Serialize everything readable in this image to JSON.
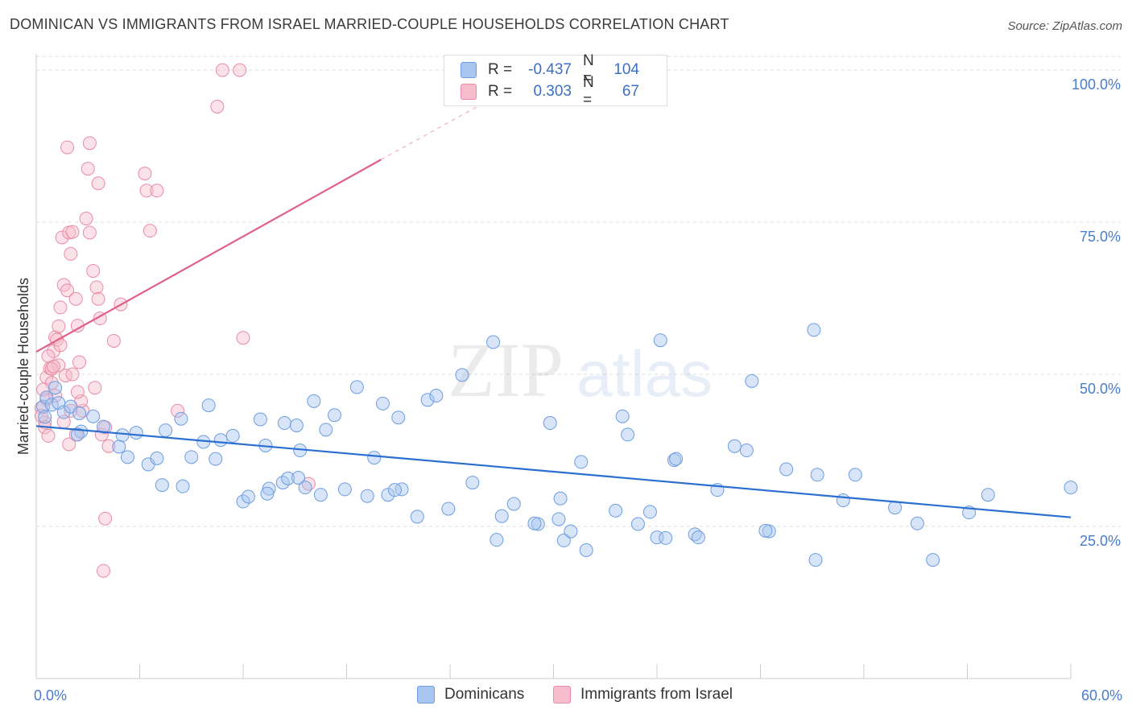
{
  "title": "DOMINICAN VS IMMIGRANTS FROM ISRAEL MARRIED-COUPLE HOUSEHOLDS CORRELATION CHART",
  "source": "Source: ZipAtlas.com",
  "watermark": {
    "zip": "ZIP",
    "atlas": "atlas"
  },
  "legend": {
    "rows": [
      {
        "r_label": "R =",
        "r_value": "-0.437",
        "n_label": "N =",
        "n_value": "104",
        "color": "#a9c6f0",
        "border": "#6d9de0"
      },
      {
        "r_label": "R =",
        "r_value": "0.303",
        "n_label": "N =",
        "n_value": "67",
        "color": "#f7bccd",
        "border": "#e88ca8"
      }
    ]
  },
  "bottom_legend": {
    "dominicans": "Dominicans",
    "israel": "Immigrants from Israel"
  },
  "chart_data": {
    "type": "scatter",
    "title": "DOMINICAN VS IMMIGRANTS FROM ISRAEL MARRIED-COUPLE HOUSEHOLDS CORRELATION CHART",
    "xlabel": "",
    "ylabel": "Married-couple Households",
    "xlim": [
      0,
      60
    ],
    "ylim": [
      0,
      102
    ],
    "x_tick_labels": {
      "left": "0.0%",
      "right": "60.0%"
    },
    "y_tick_labels": [
      "25.0%",
      "50.0%",
      "75.0%",
      "100.0%"
    ],
    "y_ticks": [
      25,
      50,
      75,
      100
    ],
    "colors": {
      "dominicans": "#6d9de0",
      "dominicans_line": "#2b6fd1",
      "israel": "#e88ca8",
      "israel_line": "#e0608a"
    },
    "series": [
      {
        "name": "Dominicans",
        "trend": {
          "x0": 0,
          "y0": 41.5,
          "x1": 60,
          "y1": 26.5
        },
        "points": [
          [
            0.4,
            44.7
          ],
          [
            0.6,
            46.2
          ],
          [
            0.9,
            45.0
          ],
          [
            1.1,
            47.8
          ],
          [
            0.5,
            43.0
          ],
          [
            1.3,
            45.3
          ],
          [
            1.6,
            43.8
          ],
          [
            2.0,
            44.7
          ],
          [
            2.5,
            43.6
          ],
          [
            3.3,
            43.1
          ],
          [
            3.9,
            41.4
          ],
          [
            2.6,
            40.6
          ],
          [
            2.4,
            40.1
          ],
          [
            5.0,
            40.0
          ],
          [
            5.8,
            40.4
          ],
          [
            7.5,
            40.8
          ],
          [
            8.4,
            42.7
          ],
          [
            9.7,
            38.9
          ],
          [
            10.7,
            39.2
          ],
          [
            11.4,
            39.9
          ],
          [
            13.0,
            42.6
          ],
          [
            13.3,
            38.3
          ],
          [
            14.4,
            42.0
          ],
          [
            15.1,
            41.6
          ],
          [
            16.1,
            45.6
          ],
          [
            15.3,
            37.5
          ],
          [
            17.3,
            43.3
          ],
          [
            16.8,
            40.9
          ],
          [
            18.6,
            47.9
          ],
          [
            19.6,
            36.3
          ],
          [
            20.1,
            45.2
          ],
          [
            21.0,
            42.9
          ],
          [
            21.2,
            31.1
          ],
          [
            22.7,
            45.8
          ],
          [
            23.2,
            46.5
          ],
          [
            24.7,
            49.9
          ],
          [
            25.3,
            32.2
          ],
          [
            26.5,
            55.3
          ],
          [
            27.0,
            26.7
          ],
          [
            27.7,
            28.7
          ],
          [
            29.1,
            25.4
          ],
          [
            30.3,
            26.2
          ],
          [
            30.4,
            29.6
          ],
          [
            29.8,
            42.0
          ],
          [
            31.9,
            21.1
          ],
          [
            31.6,
            35.6
          ],
          [
            34.0,
            43.1
          ],
          [
            34.3,
            40.1
          ],
          [
            34.9,
            25.4
          ],
          [
            36.0,
            23.2
          ],
          [
            36.5,
            23.1
          ],
          [
            36.2,
            55.6
          ],
          [
            37.0,
            35.9
          ],
          [
            37.1,
            36.1
          ],
          [
            38.2,
            23.7
          ],
          [
            38.4,
            23.2
          ],
          [
            39.5,
            31.0
          ],
          [
            40.5,
            38.2
          ],
          [
            41.2,
            37.5
          ],
          [
            42.5,
            24.2
          ],
          [
            42.3,
            24.3
          ],
          [
            43.5,
            34.4
          ],
          [
            41.5,
            48.9
          ],
          [
            45.3,
            33.5
          ],
          [
            45.1,
            57.3
          ],
          [
            46.8,
            29.3
          ],
          [
            47.5,
            33.5
          ],
          [
            49.8,
            28.1
          ],
          [
            51.1,
            25.5
          ],
          [
            54.1,
            27.3
          ],
          [
            55.2,
            30.2
          ],
          [
            60.0,
            31.4
          ],
          [
            52.0,
            19.5
          ],
          [
            45.2,
            19.5
          ],
          [
            6.5,
            35.2
          ],
          [
            7.0,
            36.2
          ],
          [
            7.3,
            31.8
          ],
          [
            8.5,
            31.6
          ],
          [
            9.0,
            36.4
          ],
          [
            10.4,
            36.1
          ],
          [
            12.0,
            29.1
          ],
          [
            12.3,
            29.9
          ],
          [
            13.5,
            31.2
          ],
          [
            13.4,
            30.4
          ],
          [
            14.3,
            32.2
          ],
          [
            14.6,
            32.9
          ],
          [
            15.2,
            33.0
          ],
          [
            15.6,
            31.4
          ],
          [
            16.5,
            30.2
          ],
          [
            17.9,
            31.1
          ],
          [
            19.2,
            30.0
          ],
          [
            20.4,
            30.2
          ],
          [
            20.8,
            31.0
          ],
          [
            22.1,
            26.6
          ],
          [
            23.9,
            27.9
          ],
          [
            26.7,
            22.8
          ],
          [
            28.9,
            25.5
          ],
          [
            30.6,
            22.7
          ],
          [
            31.0,
            24.2
          ],
          [
            33.6,
            27.6
          ],
          [
            35.6,
            27.4
          ],
          [
            10.0,
            44.9
          ],
          [
            4.8,
            38.1
          ],
          [
            5.3,
            36.4
          ]
        ]
      },
      {
        "name": "Immigrants from Israel",
        "trend": {
          "x0": 0,
          "y0": 53.7,
          "x1": 20,
          "y1": 85.3,
          "dash_to_x": 27.5,
          "dash_to_y": 97.0
        },
        "points": [
          [
            0.3,
            44.5
          ],
          [
            0.5,
            42.1
          ],
          [
            0.6,
            49.5
          ],
          [
            0.8,
            51.0
          ],
          [
            0.9,
            48.6
          ],
          [
            1.0,
            53.8
          ],
          [
            1.1,
            56.1
          ],
          [
            1.2,
            55.7
          ],
          [
            1.3,
            57.9
          ],
          [
            1.4,
            61.0
          ],
          [
            1.5,
            72.5
          ],
          [
            1.6,
            64.7
          ],
          [
            1.8,
            63.8
          ],
          [
            1.9,
            73.3
          ],
          [
            2.0,
            69.8
          ],
          [
            2.1,
            73.4
          ],
          [
            2.3,
            62.4
          ],
          [
            2.4,
            58.0
          ],
          [
            2.5,
            52.0
          ],
          [
            2.7,
            44.0
          ],
          [
            2.9,
            75.6
          ],
          [
            3.0,
            83.8
          ],
          [
            3.1,
            73.3
          ],
          [
            3.3,
            67.0
          ],
          [
            3.5,
            64.3
          ],
          [
            3.6,
            62.4
          ],
          [
            3.7,
            59.2
          ],
          [
            4.5,
            55.5
          ],
          [
            4.9,
            61.5
          ],
          [
            3.8,
            40.1
          ],
          [
            2.0,
            44.0
          ],
          [
            1.7,
            49.8
          ],
          [
            1.3,
            51.5
          ],
          [
            0.9,
            50.9
          ],
          [
            0.6,
            45.9
          ],
          [
            0.4,
            47.5
          ],
          [
            0.3,
            43.2
          ],
          [
            0.5,
            41.3
          ],
          [
            0.7,
            39.9
          ],
          [
            1.0,
            51.3
          ],
          [
            1.6,
            42.2
          ],
          [
            2.3,
            40.1
          ],
          [
            2.6,
            45.6
          ],
          [
            1.9,
            38.5
          ],
          [
            3.4,
            47.8
          ],
          [
            4.0,
            41.3
          ],
          [
            4.2,
            38.2
          ],
          [
            6.4,
            80.2
          ],
          [
            6.6,
            73.6
          ],
          [
            7.0,
            80.2
          ],
          [
            6.3,
            83.0
          ],
          [
            3.1,
            88.0
          ],
          [
            1.8,
            87.3
          ],
          [
            10.5,
            94.0
          ],
          [
            10.8,
            100.0
          ],
          [
            11.8,
            100.0
          ],
          [
            12.0,
            56.0
          ],
          [
            15.8,
            32.0
          ],
          [
            4.0,
            26.3
          ],
          [
            3.9,
            17.7
          ],
          [
            8.2,
            44.0
          ],
          [
            1.1,
            46.5
          ],
          [
            2.4,
            47.1
          ],
          [
            1.4,
            54.8
          ],
          [
            2.1,
            50.0
          ],
          [
            0.7,
            53.0
          ],
          [
            3.6,
            81.4
          ]
        ]
      }
    ]
  }
}
